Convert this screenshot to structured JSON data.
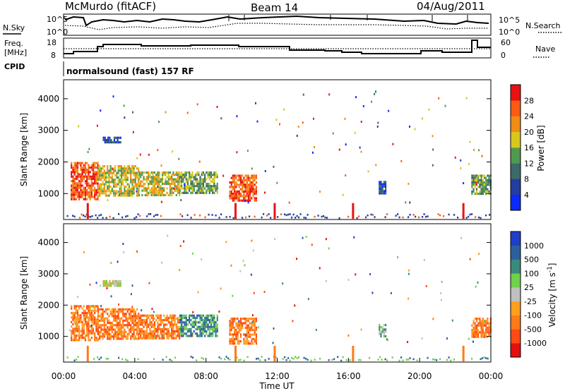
{
  "header": {
    "station": "McMurdo (fitACF)",
    "beam": "Beam 14",
    "date": "04/Aug/2011"
  },
  "summary_panels": {
    "nsky_label": "N.Sky",
    "nsky_scale_left": [
      "10^5",
      "10^0"
    ],
    "nsearch_label": "N.Search",
    "nsearch_scale_right": [
      "10^5",
      "10^0"
    ],
    "freq_label": [
      "Freq.",
      "[MHz]"
    ],
    "freq_scale": [
      "18",
      "8"
    ],
    "nave_label": "Nave",
    "nave_scale": [
      "60",
      "0"
    ],
    "cpid_label": "CPID",
    "cpid_text": "normalsound (fast) 157 RF"
  },
  "chart_data": [
    {
      "type": "heatmap",
      "panel": "power",
      "ylabel": "Slant Range [km]",
      "yticks": [
        "1000",
        "2000",
        "3000",
        "4000"
      ],
      "ylim": [
        180,
        4600
      ],
      "xlim": [
        0,
        24
      ],
      "colorbar": {
        "label": "Power [dB]",
        "ticks": [
          "4",
          "8",
          "12",
          "16",
          "20",
          "24",
          "28"
        ],
        "colors": [
          "#0b2aff",
          "#223e9e",
          "#3d6a6a",
          "#4f9a4f",
          "#d8c81e",
          "#f08d17",
          "#ff5a14",
          "#e91212"
        ]
      },
      "regions": [
        {
          "t": [
            0.4,
            1.9
          ],
          "r": [
            850,
            2000
          ],
          "level": 6
        },
        {
          "t": [
            1.9,
            4.2
          ],
          "r": [
            900,
            1900
          ],
          "level": 4
        },
        {
          "t": [
            4.2,
            6.5
          ],
          "r": [
            950,
            1700
          ],
          "level": 4
        },
        {
          "t": [
            6.5,
            8.6
          ],
          "r": [
            1000,
            1700
          ],
          "level": 3
        },
        {
          "t": [
            9.3,
            10.8
          ],
          "r": [
            750,
            1600
          ],
          "level": 6
        },
        {
          "t": [
            2.2,
            3.2
          ],
          "r": [
            2600,
            2800
          ],
          "level": 1
        },
        {
          "t": [
            17.7,
            18.1
          ],
          "r": [
            1000,
            1400
          ],
          "level": 1
        },
        {
          "t": [
            22.9,
            24.0
          ],
          "r": [
            1000,
            1600
          ],
          "level": 3
        }
      ]
    },
    {
      "type": "heatmap",
      "panel": "velocity",
      "ylabel": "Slant Range [km]",
      "yticks": [
        "1000",
        "2000",
        "3000",
        "4000"
      ],
      "ylim": [
        180,
        4600
      ],
      "xlim": [
        0,
        24
      ],
      "xticks": [
        "00:00",
        "04:00",
        "08:00",
        "12:00",
        "16:00",
        "20:00",
        "00:00"
      ],
      "xlabel": "Time UT",
      "colorbar": {
        "label": "Velocity [m s^-1]",
        "ticks": [
          "1000",
          "500",
          "100",
          "25",
          "-25",
          "-100",
          "-500",
          "-1000"
        ],
        "colors": [
          "#1f3fc8",
          "#2d5fa0",
          "#3a8a7a",
          "#6fd14c",
          "#c0c0c0",
          "#ff9f1e",
          "#ff7a18",
          "#ff4a12",
          "#e41010"
        ]
      },
      "regions": [
        {
          "t": [
            0.4,
            1.9
          ],
          "r": [
            850,
            2000
          ],
          "level": 6
        },
        {
          "t": [
            1.9,
            4.2
          ],
          "r": [
            900,
            1900
          ],
          "level": 6
        },
        {
          "t": [
            4.2,
            6.5
          ],
          "r": [
            950,
            1700
          ],
          "level": 6
        },
        {
          "t": [
            6.5,
            8.6
          ],
          "r": [
            1000,
            1700
          ],
          "level": 2
        },
        {
          "t": [
            9.3,
            10.8
          ],
          "r": [
            750,
            1600
          ],
          "level": 6
        },
        {
          "t": [
            2.2,
            3.2
          ],
          "r": [
            2600,
            2800
          ],
          "level": 4
        },
        {
          "t": [
            17.7,
            18.1
          ],
          "r": [
            1000,
            1400
          ],
          "level": 3
        },
        {
          "t": [
            22.9,
            24.0
          ],
          "r": [
            1000,
            1600
          ],
          "level": 6
        }
      ]
    }
  ]
}
